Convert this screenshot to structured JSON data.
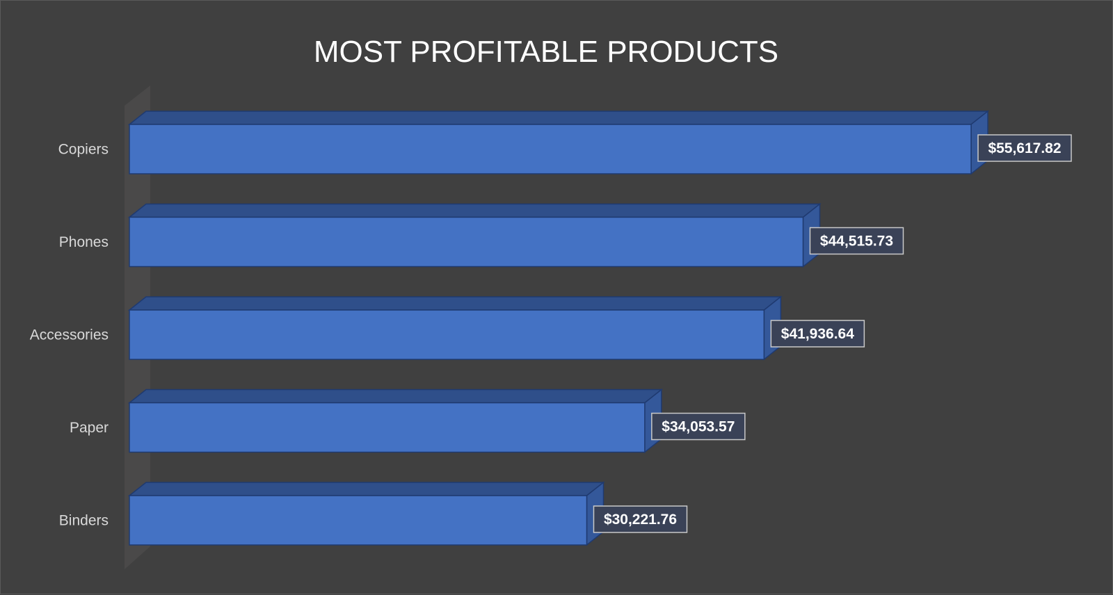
{
  "chart_data": {
    "type": "bar",
    "orientation": "horizontal",
    "style": "3d",
    "title": "MOST PROFITABLE PRODUCTS",
    "categories": [
      "Copiers",
      "Phones",
      "Accessories",
      "Paper",
      "Binders"
    ],
    "values": [
      55617.82,
      44515.73,
      41936.64,
      34053.57,
      30221.76
    ],
    "data_labels": [
      "$55,617.82",
      "$44,515.73",
      "$41,936.64",
      "$34,053.57",
      "$30,221.76"
    ],
    "xlabel": "",
    "ylabel": "",
    "xlim": [
      0,
      55617.82
    ],
    "grid": false,
    "legend": "none",
    "colors": {
      "background": "#404040",
      "bar_front": "#4472c4",
      "bar_top": "#2f4f8a",
      "bar_side": "#34589a",
      "bar_edge": "#1f3a70",
      "floor": "#4a4949",
      "label_box_fill": "#3a4257",
      "label_box_border": "#c9c9c9",
      "title_text": "#ffffff",
      "category_text": "#d9d9d9"
    }
  }
}
